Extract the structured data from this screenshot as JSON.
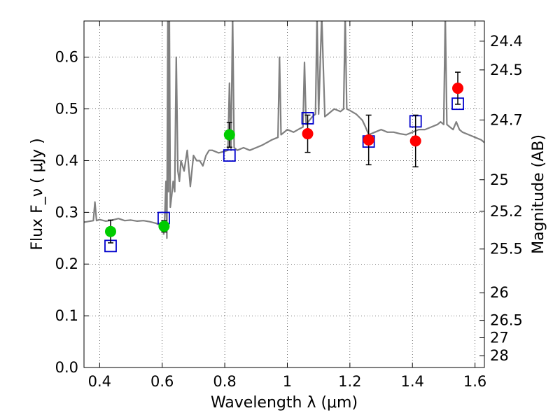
{
  "chart_data": {
    "type": "scatter",
    "xlabel": "Wavelength  λ (μm)",
    "ylabel": "Flux  F_ν  ( μJy )",
    "y2label": "Magnitude (AB)",
    "xlim": [
      0.35,
      1.63
    ],
    "ylim": [
      0.0,
      0.67
    ],
    "grid": true,
    "x_ticks": [
      0.4,
      0.6,
      0.8,
      1.0,
      1.2,
      1.4,
      1.6
    ],
    "x_tick_labels": [
      "0.4",
      "0.6",
      "0.8",
      "1",
      "1.2",
      "1.4",
      "1.6"
    ],
    "y_ticks": [
      0.0,
      0.1,
      0.2,
      0.3,
      0.4,
      0.5,
      0.6
    ],
    "y_tick_labels": [
      "0.0",
      "0.1",
      "0.2",
      "0.3",
      "0.4",
      "0.5",
      "0.6"
    ],
    "right_ticks": [
      {
        "mag": 24.4,
        "label": "24.4"
      },
      {
        "mag": 24.5,
        "label": "24.5"
      },
      {
        "mag": 24.7,
        "label": "24.7"
      },
      {
        "mag": 25.0,
        "label": "25"
      },
      {
        "mag": 25.2,
        "label": "25.2"
      },
      {
        "mag": 25.5,
        "label": "25.5"
      },
      {
        "mag": 26.0,
        "label": "26"
      },
      {
        "mag": 26.5,
        "label": "26.5"
      },
      {
        "mag": 27.0,
        "label": "27"
      },
      {
        "mag": 28.0,
        "label": "28"
      }
    ],
    "series": [
      {
        "kind": "model_spectrum",
        "color": "#808080",
        "points": [
          [
            0.35,
            0.281
          ],
          [
            0.36,
            0.282
          ],
          [
            0.37,
            0.283
          ],
          [
            0.38,
            0.284
          ],
          [
            0.385,
            0.32
          ],
          [
            0.39,
            0.284
          ],
          [
            0.4,
            0.286
          ],
          [
            0.42,
            0.283
          ],
          [
            0.44,
            0.285
          ],
          [
            0.46,
            0.288
          ],
          [
            0.48,
            0.284
          ],
          [
            0.5,
            0.285
          ],
          [
            0.52,
            0.283
          ],
          [
            0.54,
            0.284
          ],
          [
            0.56,
            0.282
          ],
          [
            0.58,
            0.279
          ],
          [
            0.59,
            0.276
          ],
          [
            0.6,
            0.272
          ],
          [
            0.605,
            0.258
          ],
          [
            0.608,
            0.29
          ],
          [
            0.612,
            0.36
          ],
          [
            0.615,
            0.25
          ],
          [
            0.618,
            0.68
          ],
          [
            0.62,
            0.34
          ],
          [
            0.623,
            0.67
          ],
          [
            0.626,
            0.31
          ],
          [
            0.63,
            0.33
          ],
          [
            0.635,
            0.36
          ],
          [
            0.64,
            0.34
          ],
          [
            0.645,
            0.6
          ],
          [
            0.65,
            0.38
          ],
          [
            0.655,
            0.36
          ],
          [
            0.66,
            0.4
          ],
          [
            0.67,
            0.38
          ],
          [
            0.68,
            0.42
          ],
          [
            0.69,
            0.35
          ],
          [
            0.7,
            0.41
          ],
          [
            0.71,
            0.4
          ],
          [
            0.72,
            0.4
          ],
          [
            0.73,
            0.39
          ],
          [
            0.74,
            0.41
          ],
          [
            0.75,
            0.42
          ],
          [
            0.76,
            0.42
          ],
          [
            0.78,
            0.415
          ],
          [
            0.8,
            0.418
          ],
          [
            0.81,
            0.42
          ],
          [
            0.815,
            0.55
          ],
          [
            0.82,
            0.42
          ],
          [
            0.825,
            0.68
          ],
          [
            0.83,
            0.425
          ],
          [
            0.84,
            0.42
          ],
          [
            0.86,
            0.425
          ],
          [
            0.88,
            0.42
          ],
          [
            0.9,
            0.425
          ],
          [
            0.92,
            0.43
          ],
          [
            0.95,
            0.44
          ],
          [
            0.97,
            0.445
          ],
          [
            0.975,
            0.6
          ],
          [
            0.98,
            0.45
          ],
          [
            1.0,
            0.46
          ],
          [
            1.02,
            0.455
          ],
          [
            1.04,
            0.462
          ],
          [
            1.05,
            0.465
          ],
          [
            1.055,
            0.59
          ],
          [
            1.06,
            0.47
          ],
          [
            1.08,
            0.485
          ],
          [
            1.09,
            0.49
          ],
          [
            1.095,
            0.68
          ],
          [
            1.1,
            0.49
          ],
          [
            1.11,
            0.68
          ],
          [
            1.12,
            0.485
          ],
          [
            1.13,
            0.49
          ],
          [
            1.15,
            0.5
          ],
          [
            1.17,
            0.495
          ],
          [
            1.18,
            0.5
          ],
          [
            1.185,
            0.68
          ],
          [
            1.19,
            0.5
          ],
          [
            1.2,
            0.497
          ],
          [
            1.22,
            0.49
          ],
          [
            1.24,
            0.478
          ],
          [
            1.25,
            0.465
          ],
          [
            1.26,
            0.45
          ],
          [
            1.28,
            0.455
          ],
          [
            1.3,
            0.46
          ],
          [
            1.32,
            0.455
          ],
          [
            1.34,
            0.455
          ],
          [
            1.36,
            0.452
          ],
          [
            1.38,
            0.45
          ],
          [
            1.4,
            0.455
          ],
          [
            1.42,
            0.46
          ],
          [
            1.44,
            0.46
          ],
          [
            1.46,
            0.465
          ],
          [
            1.48,
            0.47
          ],
          [
            1.49,
            0.475
          ],
          [
            1.5,
            0.47
          ],
          [
            1.505,
            0.68
          ],
          [
            1.51,
            0.47
          ],
          [
            1.52,
            0.465
          ],
          [
            1.53,
            0.46
          ],
          [
            1.54,
            0.475
          ],
          [
            1.55,
            0.46
          ],
          [
            1.56,
            0.455
          ],
          [
            1.58,
            0.45
          ],
          [
            1.6,
            0.445
          ],
          [
            1.62,
            0.44
          ],
          [
            1.63,
            0.435
          ]
        ]
      },
      {
        "kind": "model_photometry",
        "marker": "open-square",
        "color": "#0000cc",
        "points": [
          [
            0.435,
            0.235
          ],
          [
            0.605,
            0.289
          ],
          [
            0.815,
            0.41
          ],
          [
            1.065,
            0.482
          ],
          [
            1.26,
            0.437
          ],
          [
            1.41,
            0.476
          ],
          [
            1.545,
            0.51
          ]
        ]
      },
      {
        "kind": "observed_optical",
        "marker": "filled-circle",
        "color": "#00cc00",
        "points": [
          {
            "x": 0.435,
            "y": 0.263,
            "err": 0.022
          },
          {
            "x": 0.606,
            "y": 0.273,
            "err": 0.011
          },
          {
            "x": 0.815,
            "y": 0.45,
            "err": 0.024
          }
        ]
      },
      {
        "kind": "observed_nir",
        "marker": "filled-circle",
        "color": "#ff0000",
        "points": [
          {
            "x": 1.065,
            "y": 0.452,
            "err": 0.036
          },
          {
            "x": 1.26,
            "y": 0.44,
            "err": 0.048
          },
          {
            "x": 1.41,
            "y": 0.438,
            "err": 0.05
          },
          {
            "x": 1.545,
            "y": 0.54,
            "err": 0.031
          }
        ]
      }
    ]
  }
}
